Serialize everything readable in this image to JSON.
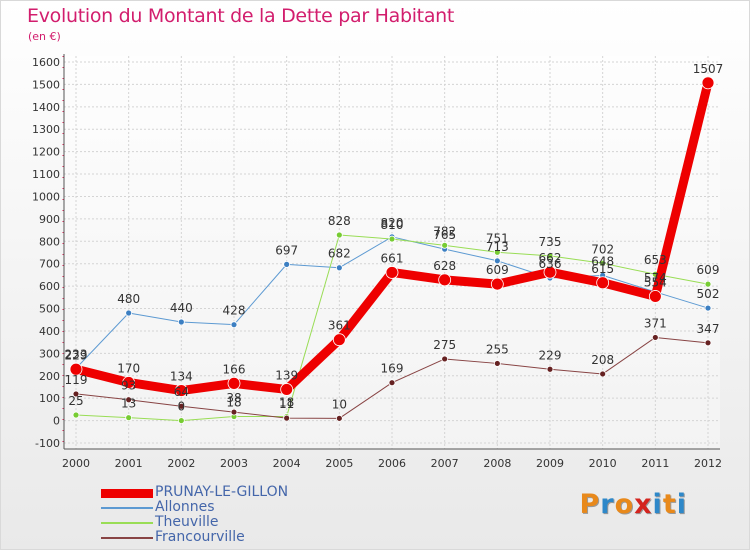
{
  "title": "Evolution du Montant de la Dette par Habitant",
  "subtitle": "(en €)",
  "logo": {
    "text": "Proxiti",
    "colors": [
      "#e8891b",
      "#2e88c9",
      "#e8891b",
      "#d4251f",
      "#2e88c9",
      "#e8891b",
      "#2e88c9"
    ]
  },
  "chart_data": {
    "type": "line",
    "categories": [
      "2000",
      "2001",
      "2002",
      "2003",
      "2004",
      "2005",
      "2006",
      "2007",
      "2008",
      "2009",
      "2010",
      "2011",
      "2012"
    ],
    "ylim": [
      -100,
      1600
    ],
    "yticks": [
      "-100",
      "0",
      "100",
      "200",
      "300",
      "400",
      "500",
      "600",
      "700",
      "800",
      "900",
      "1000",
      "1100",
      "1200",
      "1300",
      "1400",
      "1500",
      "1600"
    ],
    "grid": true,
    "legend_position": "bottom-left",
    "series": [
      {
        "name": "Allonnes",
        "color": "#5d9ad2",
        "dot": "#3c7fc2",
        "width": 1,
        "values": [
          233,
          480,
          440,
          428,
          697,
          682,
          820,
          765,
          713,
          636,
          648,
          574,
          502
        ],
        "labels": [
          "233",
          "480",
          "440",
          "428",
          "697",
          "682",
          "820",
          "765",
          "713",
          "636",
          "648",
          "574",
          "502"
        ]
      },
      {
        "name": "Theuville",
        "color": "#99dd55",
        "dot": "#77cc33",
        "width": 1,
        "values": [
          25,
          13,
          0,
          18,
          18,
          828,
          810,
          782,
          751,
          735,
          702,
          653,
          609
        ],
        "labels": [
          "25",
          "13",
          "0",
          "18",
          "18",
          "828",
          "810",
          "782",
          "751",
          "735",
          "702",
          "653",
          "609"
        ]
      },
      {
        "name": "Francourville",
        "color": "#884444",
        "dot": "#662222",
        "width": 1,
        "values": [
          119,
          93,
          64,
          38,
          11,
          10,
          169,
          275,
          255,
          229,
          208,
          371,
          347
        ],
        "labels": [
          "119",
          "93",
          "64",
          "38",
          "11",
          "10",
          "169",
          "275",
          "255",
          "229",
          "208",
          "371",
          "347"
        ]
      },
      {
        "name": "PRUNAY-LE-GILLON",
        "color": "#ee0000",
        "dot": "#ee0000",
        "width": 9,
        "values": [
          229,
          170,
          134,
          166,
          139,
          361,
          661,
          628,
          609,
          662,
          615,
          554,
          1507
        ],
        "labels": [
          "229",
          "170",
          "134",
          "166",
          "139",
          "361",
          "661",
          "628",
          "609",
          "662",
          "615",
          "554",
          "1507"
        ]
      }
    ]
  },
  "legend_order": [
    "PRUNAY-LE-GILLON",
    "Allonnes",
    "Theuville",
    "Francourville"
  ]
}
